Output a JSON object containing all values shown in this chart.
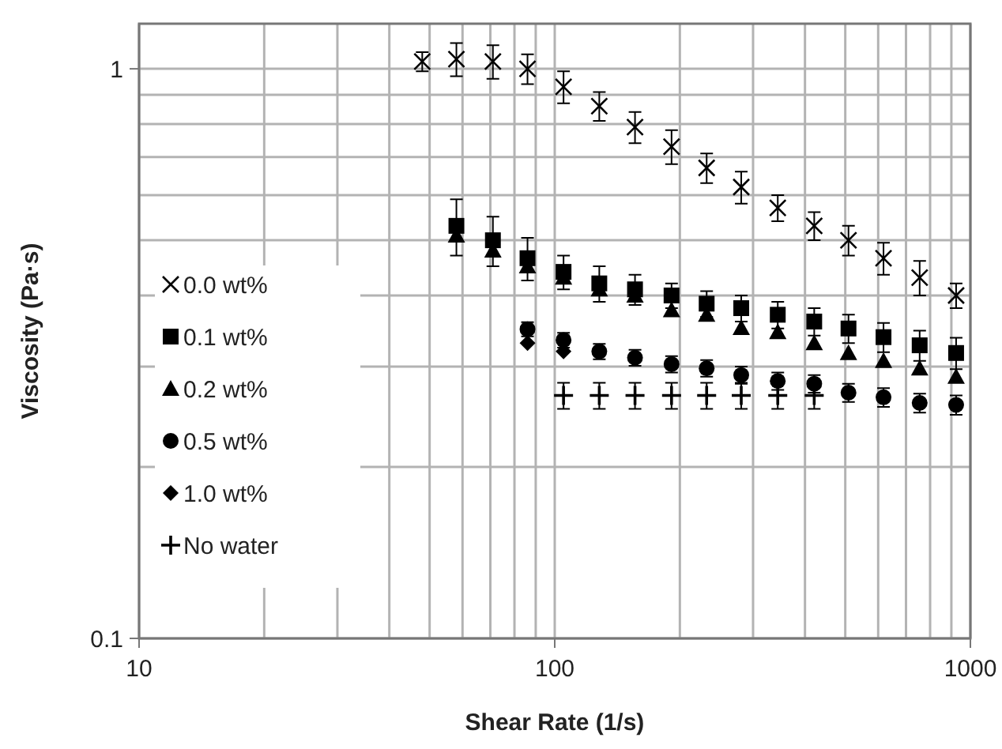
{
  "chart_data": {
    "type": "scatter",
    "xlabel": "Shear Rate (1/s)",
    "ylabel": "Viscosity (Pa·s)",
    "log": "xy",
    "grid": true,
    "legend": "left",
    "xlim": [
      10,
      1000
    ],
    "ylim": [
      0.1,
      1.2
    ],
    "xticks": [
      10,
      {
        "value": 20,
        "label": null
      },
      {
        "value": 30,
        "label": null
      },
      {
        "value": 40,
        "label": null
      },
      {
        "value": 50,
        "label": null
      },
      {
        "value": 60,
        "label": null
      },
      {
        "value": 70,
        "label": null
      },
      {
        "value": 80,
        "label": null
      },
      {
        "value": 90,
        "label": null
      },
      100,
      {
        "value": 200,
        "label": null
      },
      {
        "value": 300,
        "label": null
      },
      {
        "value": 400,
        "label": null
      },
      {
        "value": 500,
        "label": null
      },
      {
        "value": 600,
        "label": null
      },
      {
        "value": 700,
        "label": null
      },
      {
        "value": 800,
        "label": null
      },
      {
        "value": 900,
        "label": null
      },
      1000
    ],
    "yticks": [
      0.1,
      {
        "value": 0.2,
        "label": null
      },
      {
        "value": 0.3,
        "label": null
      },
      {
        "value": 0.4,
        "label": null
      },
      {
        "value": 0.5,
        "label": null
      },
      {
        "value": 0.6,
        "label": null
      },
      {
        "value": 0.7,
        "label": null
      },
      {
        "value": 0.8,
        "label": null
      },
      {
        "value": 0.9,
        "label": null
      },
      1
    ],
    "series": [
      {
        "name": "0.0 wt%",
        "color": "#000000",
        "marker": "x",
        "x": [
          48,
          58,
          71,
          86,
          105,
          128,
          156,
          191,
          232,
          281,
          344,
          421,
          509,
          618,
          755,
          924
        ],
        "values": [
          1.03,
          1.04,
          1.03,
          1.0,
          0.93,
          0.86,
          0.79,
          0.73,
          0.67,
          0.62,
          0.57,
          0.53,
          0.5,
          0.465,
          0.43,
          0.4
        ],
        "errors": [
          0.04,
          0.07,
          0.07,
          0.06,
          0.06,
          0.05,
          0.05,
          0.05,
          0.04,
          0.04,
          0.03,
          0.03,
          0.03,
          0.03,
          0.03,
          0.02
        ]
      },
      {
        "name": "0.1 wt%",
        "color": "#000000",
        "marker": "square",
        "x": [
          58,
          71,
          86,
          105,
          128,
          156,
          191,
          232,
          281,
          344,
          421,
          509,
          618,
          755,
          924
        ],
        "values": [
          0.53,
          0.5,
          0.465,
          0.44,
          0.42,
          0.41,
          0.4,
          0.387,
          0.38,
          0.37,
          0.36,
          0.35,
          0.338,
          0.327,
          0.317
        ],
        "errors": [
          0.06,
          0.05,
          0.04,
          0.03,
          0.03,
          0.025,
          0.02,
          0.02,
          0.02,
          0.02,
          0.02,
          0.02,
          0.02,
          0.02,
          0.02
        ]
      },
      {
        "name": "0.2 wt%",
        "color": "#000000",
        "marker": "triangle",
        "x": [
          58,
          71,
          86,
          105,
          128,
          156,
          191,
          232,
          281,
          344,
          421,
          509,
          618,
          755,
          924
        ],
        "values": [
          0.51,
          0.48,
          0.45,
          0.43,
          0.41,
          0.4,
          0.377,
          0.37,
          0.351,
          0.345,
          0.33,
          0.317,
          0.307,
          0.298,
          0.288
        ]
      },
      {
        "name": "0.5 wt%",
        "color": "#000000",
        "marker": "circle",
        "x": [
          86,
          105,
          128,
          156,
          191,
          232,
          281,
          344,
          421,
          509,
          618,
          755,
          924
        ],
        "values": [
          0.349,
          0.334,
          0.319,
          0.311,
          0.303,
          0.298,
          0.29,
          0.283,
          0.28,
          0.27,
          0.265,
          0.259,
          0.257
        ],
        "errors": [
          0.01,
          0.01,
          0.01,
          0.01,
          0.01,
          0.01,
          0.01,
          0.01,
          0.01,
          0.01,
          0.01,
          0.01,
          0.01
        ]
      },
      {
        "name": "1.0 wt%",
        "color": "#000000",
        "marker": "diamond",
        "x": [
          86,
          105
        ],
        "values": [
          0.33,
          0.319
        ]
      },
      {
        "name": "No water",
        "color": "#000000",
        "marker": "cross",
        "x": [
          105,
          128,
          156,
          191,
          232,
          281,
          344,
          421
        ],
        "values": [
          0.267,
          0.267,
          0.267,
          0.267,
          0.267,
          0.267,
          0.267,
          0.267
        ],
        "errors": [
          0.014,
          0.014,
          0.014,
          0.014,
          0.014,
          0.014,
          0.014,
          0.014
        ]
      }
    ]
  }
}
